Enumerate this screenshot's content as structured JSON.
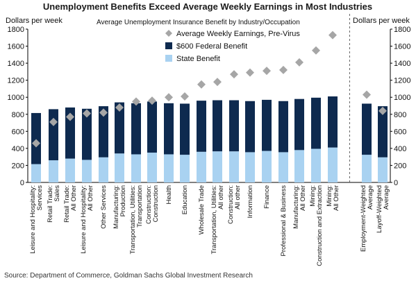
{
  "chart_data": {
    "type": "bar",
    "title": "Unemployment Benefits Exceed Average Weekly Earnings in Most Industries",
    "subtitle": "Average Unemployment Insurance Benefit by Industry/Occupation",
    "ylabel_left": "Dollars per week",
    "ylabel_right": "Dollars per week",
    "ylim": [
      0,
      1800
    ],
    "yticks": [
      0,
      200,
      400,
      600,
      800,
      1000,
      1200,
      1400,
      1600,
      1800
    ],
    "grid": false,
    "legend_position": "top-center",
    "categories": [
      "Leisure and Hospitality: Services",
      "Retail Trade: Sales",
      "Retail Trade: All Other",
      "Leisure and Hospitality: All Other",
      "Other Services",
      "Manufacturing: Production",
      "Transportation, Utilities: Transportation",
      "Construction: Construction",
      "Health",
      "Education",
      "Wholesale Trade",
      "Transportation, Utilities: All other",
      "Construction: All other",
      "Information",
      "Finance",
      "Professional & Business",
      "Manufacturing: All Other",
      "Mining: Construction and Extraction",
      "Mining: All Other",
      "Employment-Weighted Average",
      "Layoff-Weighted Average"
    ],
    "group_separator_after_index": 18,
    "series": [
      {
        "name": "Average Weekly Earnings, Pre-Virus",
        "kind": "marker",
        "color": "#a6a6a6",
        "values": [
          460,
          710,
          770,
          810,
          820,
          880,
          950,
          960,
          1000,
          1010,
          1150,
          1180,
          1270,
          1290,
          1310,
          1320,
          1410,
          1550,
          1730,
          1030,
          840
        ]
      },
      {
        "name": "$600 Federal Benefit",
        "kind": "bar",
        "color": "#0e2a4f",
        "values": [
          600,
          600,
          600,
          600,
          600,
          600,
          600,
          600,
          600,
          600,
          600,
          600,
          600,
          600,
          600,
          600,
          600,
          600,
          600,
          600,
          600
        ]
      },
      {
        "name": "State Benefit",
        "kind": "bar",
        "color": "#a9d2f1",
        "values": [
          215,
          260,
          280,
          265,
          295,
          340,
          330,
          350,
          330,
          325,
          360,
          365,
          365,
          355,
          370,
          355,
          380,
          395,
          410,
          325,
          295
        ]
      }
    ],
    "source": "Source: Department of Commerce, Goldman Sachs Global Investment Research"
  }
}
